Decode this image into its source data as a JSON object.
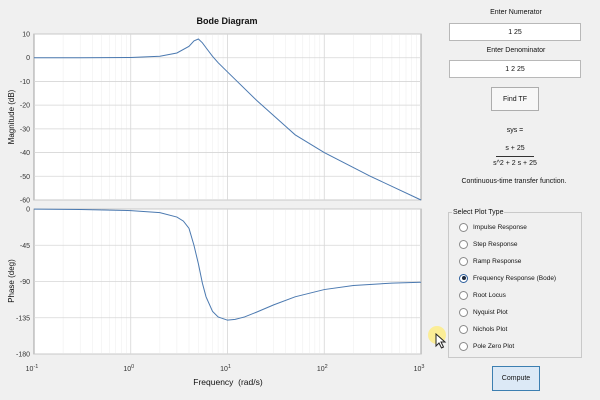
{
  "plot": {
    "title": "Bode Diagram",
    "xlabel": "Frequency  (rad/s)",
    "mag_ylabel": "Magnitude (dB)",
    "phase_ylabel": "Phase (deg)",
    "line_color": "#4b79b0"
  },
  "chart_data": [
    {
      "type": "line",
      "title": "Bode Diagram",
      "xlabel": "",
      "ylabel": "Magnitude (dB)",
      "x_scale": "log",
      "xlim": [
        0.1,
        1000
      ],
      "ylim": [
        -60,
        10
      ],
      "yticks": [
        10,
        0,
        -10,
        -20,
        -30,
        -40,
        -50,
        -60
      ],
      "grid": true,
      "series": [
        {
          "x": [
            0.1,
            0.3,
            1,
            2,
            3,
            4,
            4.5,
            5,
            5.5,
            6,
            7,
            8,
            10,
            20,
            50,
            100,
            300,
            1000
          ],
          "y": [
            0,
            0,
            0.1,
            0.6,
            2,
            4.8,
            7.1,
            7.9,
            6.3,
            4.2,
            0.6,
            -2.1,
            -6,
            -18,
            -32.5,
            -40,
            -50,
            -60
          ]
        }
      ]
    },
    {
      "type": "line",
      "title": "",
      "xlabel": "Frequency  (rad/s)",
      "ylabel": "Phase (deg)",
      "x_scale": "log",
      "xlim": [
        0.1,
        1000
      ],
      "ylim": [
        -180,
        0
      ],
      "yticks": [
        0,
        -45,
        -90,
        -135,
        -180
      ],
      "xticks": [
        "10^-1",
        "10^0",
        "10^1",
        "10^2",
        "10^3"
      ],
      "grid": true,
      "series": [
        {
          "x": [
            0.1,
            0.3,
            1,
            2,
            3,
            3.5,
            4,
            4.5,
            5,
            5.5,
            6,
            7,
            8,
            10,
            12,
            15,
            20,
            30,
            50,
            100,
            200,
            500,
            1000
          ],
          "y": [
            -0.2,
            -0.6,
            -2,
            -4.5,
            -10,
            -15,
            -24,
            -45,
            -68,
            -92,
            -109,
            -127,
            -134,
            -138,
            -137,
            -134,
            -128,
            -119,
            -109,
            -100,
            -95,
            -92,
            -91
          ]
        }
      ]
    }
  ],
  "numerator": {
    "label": "Enter Numerator",
    "value": "1 25"
  },
  "denominator": {
    "label": "Enter Denominator",
    "value": "1 2 25"
  },
  "find_tf_button": "Find TF",
  "tf_output": {
    "sys": "sys =",
    "numerator": "s + 25",
    "denominator": "s^2 + 2 s + 25",
    "note": "Continuous-time transfer function."
  },
  "plot_type": {
    "title": "Select Plot Type",
    "options": [
      {
        "label": "Impulse Response",
        "selected": false
      },
      {
        "label": "Step Response",
        "selected": false
      },
      {
        "label": "Ramp Response",
        "selected": false
      },
      {
        "label": "Frequency Response (Bode)",
        "selected": true
      },
      {
        "label": "Root Locus",
        "selected": false
      },
      {
        "label": "Nyquist Plot",
        "selected": false
      },
      {
        "label": "Nichols Plot",
        "selected": false
      },
      {
        "label": "Pole Zero Plot",
        "selected": false
      }
    ]
  },
  "compute_button": "Compute"
}
